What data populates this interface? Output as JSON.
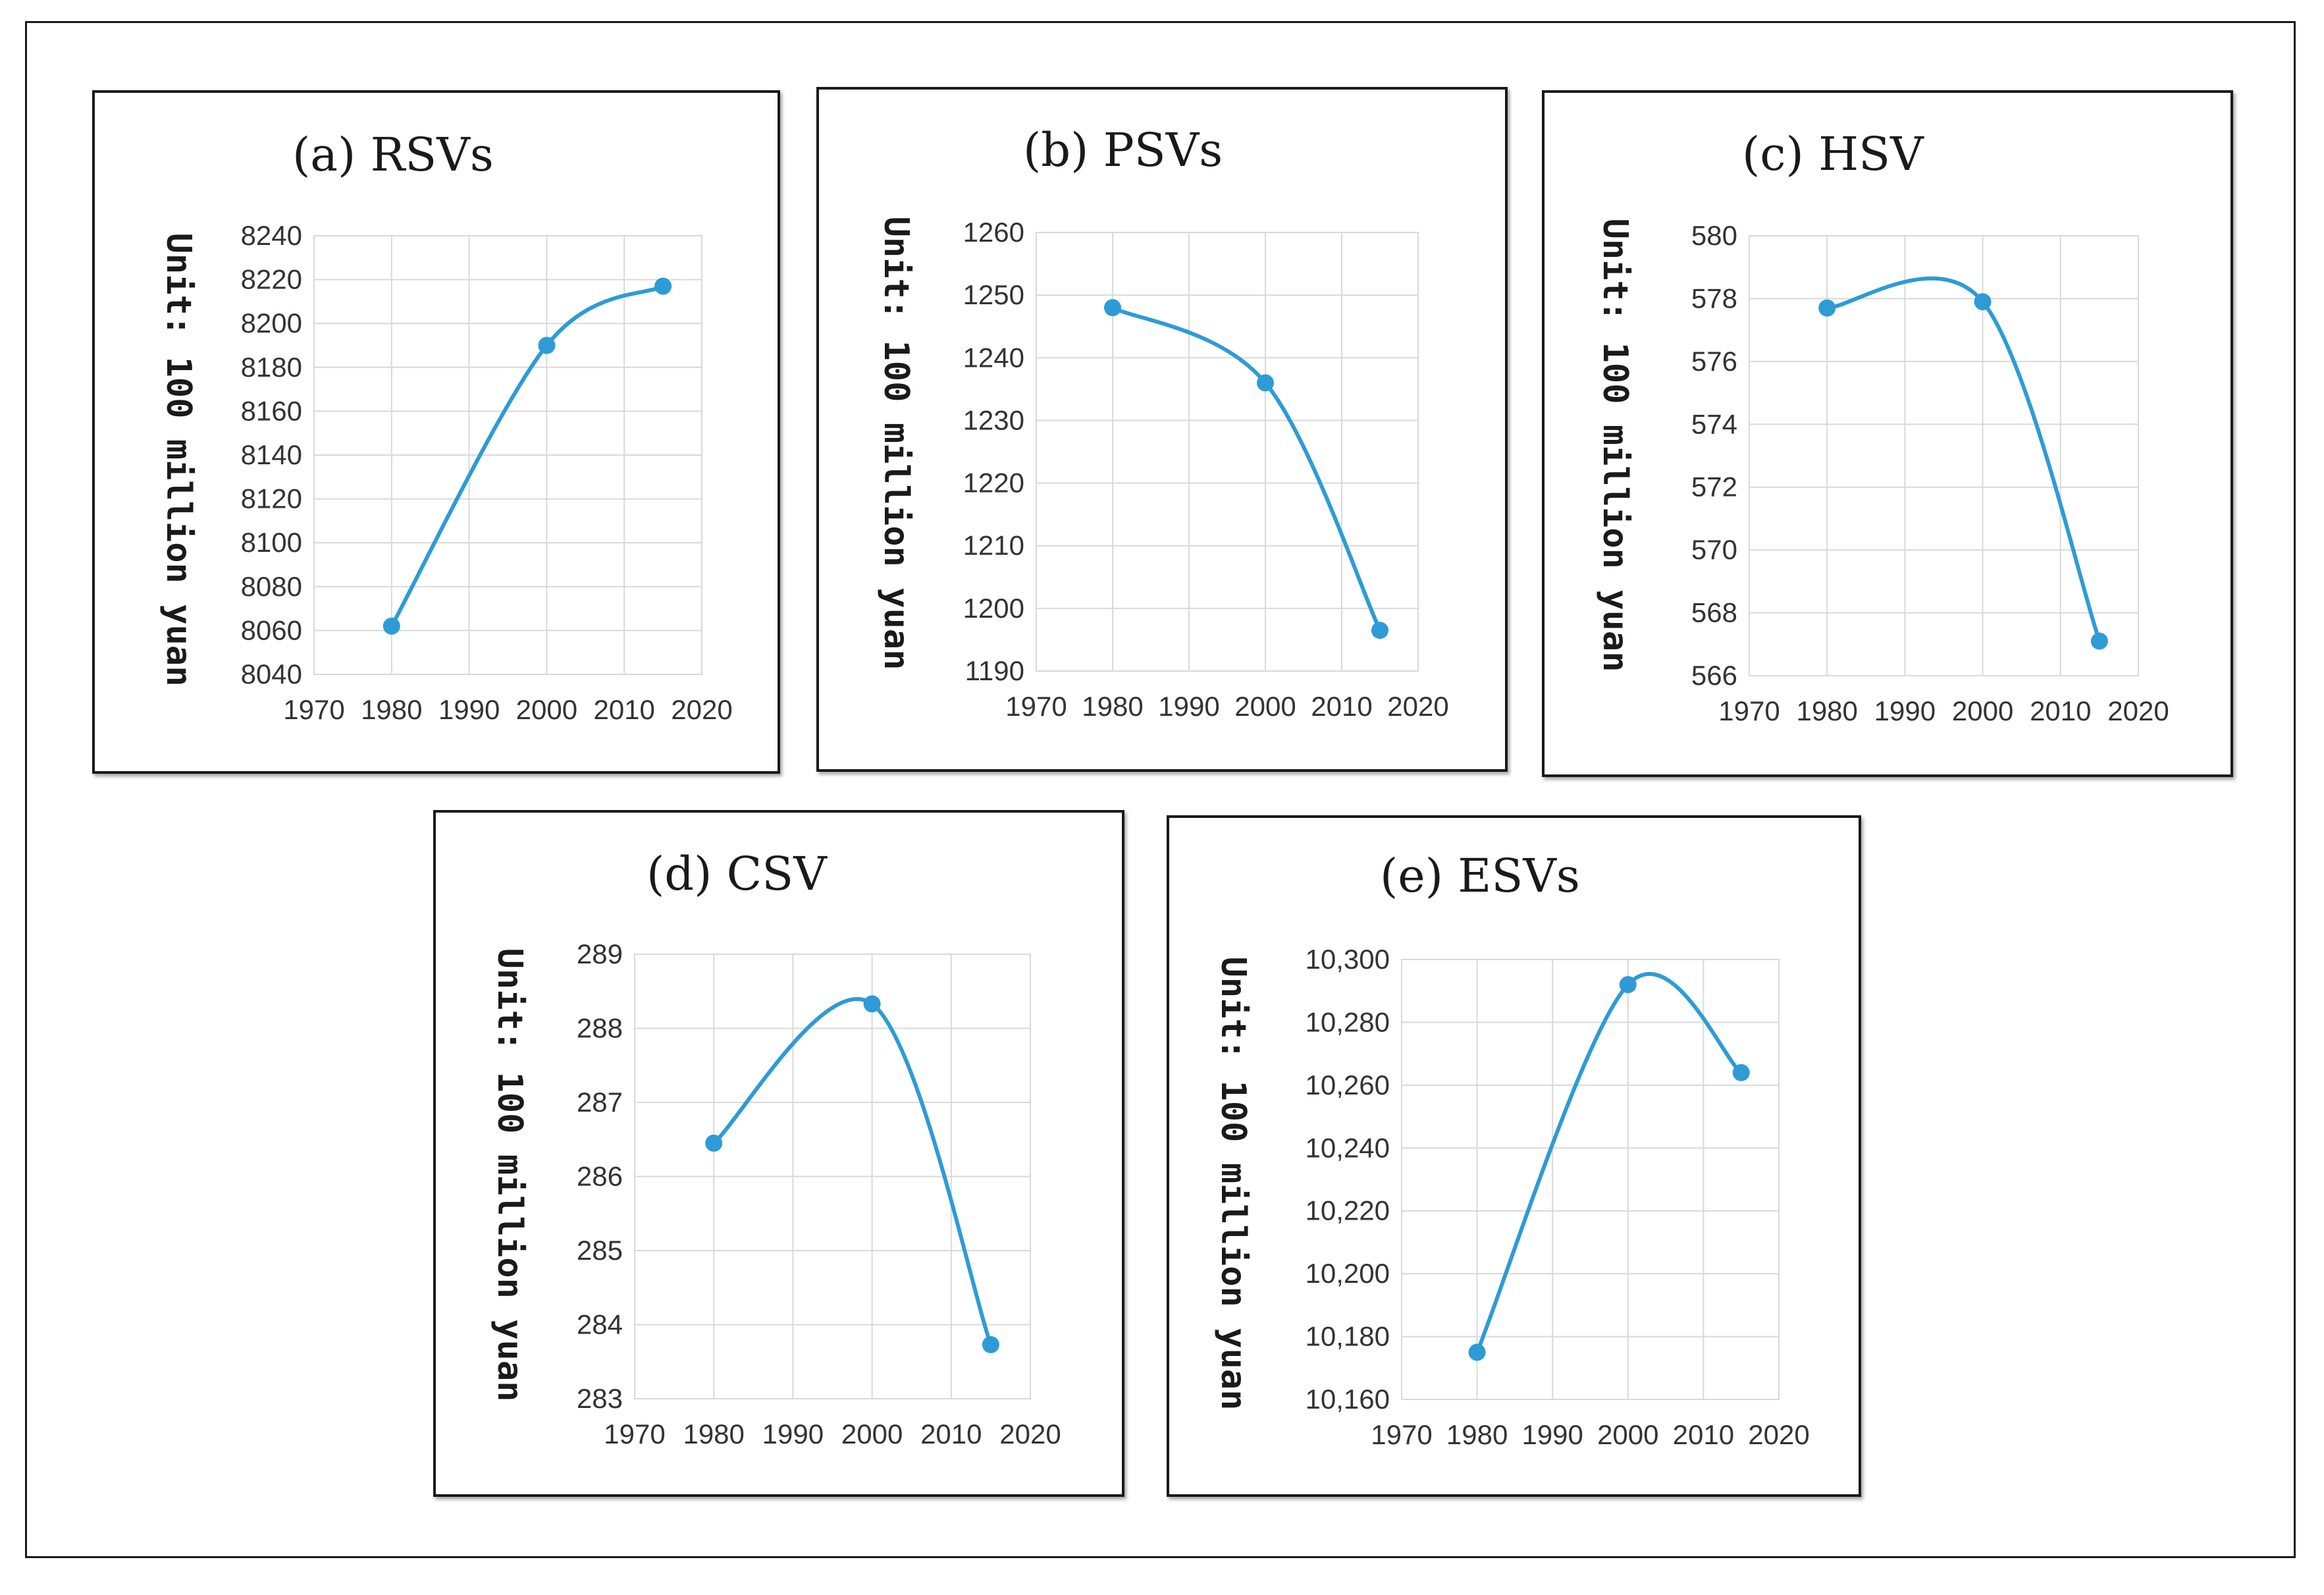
{
  "colors": {
    "series": "#2e9bd6",
    "grid": "#d9d9d9",
    "frame": "#1a1a1a"
  },
  "chart_data": [
    {
      "id": "a",
      "type": "line",
      "title": "(a) RSVs",
      "ylabel": "Unit: 100 million yuan",
      "xlabel": "",
      "x": [
        1980,
        2000,
        2015
      ],
      "values": [
        8062,
        8190,
        8217
      ],
      "xlim": [
        1970,
        2020
      ],
      "xticks": [
        "1970",
        "1980",
        "1990",
        "2000",
        "2010",
        "2020"
      ],
      "ylim": [
        8040,
        8240
      ],
      "yticks": [
        "8040",
        "8060",
        "8080",
        "8100",
        "8120",
        "8140",
        "8160",
        "8180",
        "8200",
        "8220",
        "8240"
      ],
      "grid": true
    },
    {
      "id": "b",
      "type": "line",
      "title": "(b) PSVs",
      "ylabel": "Unit: 100 million yuan",
      "xlabel": "",
      "x": [
        1980,
        2000,
        2015
      ],
      "values": [
        1248,
        1236,
        1196.5
      ],
      "xlim": [
        1970,
        2020
      ],
      "xticks": [
        "1970",
        "1980",
        "1990",
        "2000",
        "2010",
        "2020"
      ],
      "ylim": [
        1190,
        1260
      ],
      "yticks": [
        "1190",
        "1200",
        "1210",
        "1220",
        "1230",
        "1240",
        "1250",
        "1260"
      ],
      "grid": true
    },
    {
      "id": "c",
      "type": "line",
      "title": "(c) HSV",
      "ylabel": "Unit: 100 million yuan",
      "xlabel": "",
      "x": [
        1980,
        2000,
        2015
      ],
      "values": [
        577.7,
        577.9,
        567.1
      ],
      "xlim": [
        1970,
        2020
      ],
      "xticks": [
        "1970",
        "1980",
        "1990",
        "2000",
        "2010",
        "2020"
      ],
      "ylim": [
        566,
        580
      ],
      "yticks": [
        "566",
        "568",
        "570",
        "572",
        "574",
        "576",
        "578",
        "580"
      ],
      "grid": true
    },
    {
      "id": "d",
      "type": "line",
      "title": "(d) CSV",
      "ylabel": "Unit: 100 million yuan",
      "xlabel": "",
      "x": [
        1980,
        2000,
        2015
      ],
      "values": [
        286.45,
        288.33,
        283.73
      ],
      "xlim": [
        1970,
        2020
      ],
      "xticks": [
        "1970",
        "1980",
        "1990",
        "2000",
        "2010",
        "2020"
      ],
      "ylim": [
        283,
        289
      ],
      "yticks": [
        "283",
        "284",
        "285",
        "286",
        "287",
        "288",
        "289"
      ],
      "grid": true
    },
    {
      "id": "e",
      "type": "line",
      "title": "(e) ESVs",
      "ylabel": "Unit: 100 million yuan",
      "xlabel": "",
      "x": [
        1980,
        2000,
        2015
      ],
      "values": [
        10175,
        10292,
        10264
      ],
      "xlim": [
        1970,
        2020
      ],
      "xticks": [
        "1970",
        "1980",
        "1990",
        "2000",
        "2010",
        "2020"
      ],
      "ylim": [
        10160,
        10300
      ],
      "yticks": [
        "10,160",
        "10,180",
        "10,200",
        "10,220",
        "10,240",
        "10,260",
        "10,280",
        "10,300"
      ],
      "grid": true
    }
  ]
}
